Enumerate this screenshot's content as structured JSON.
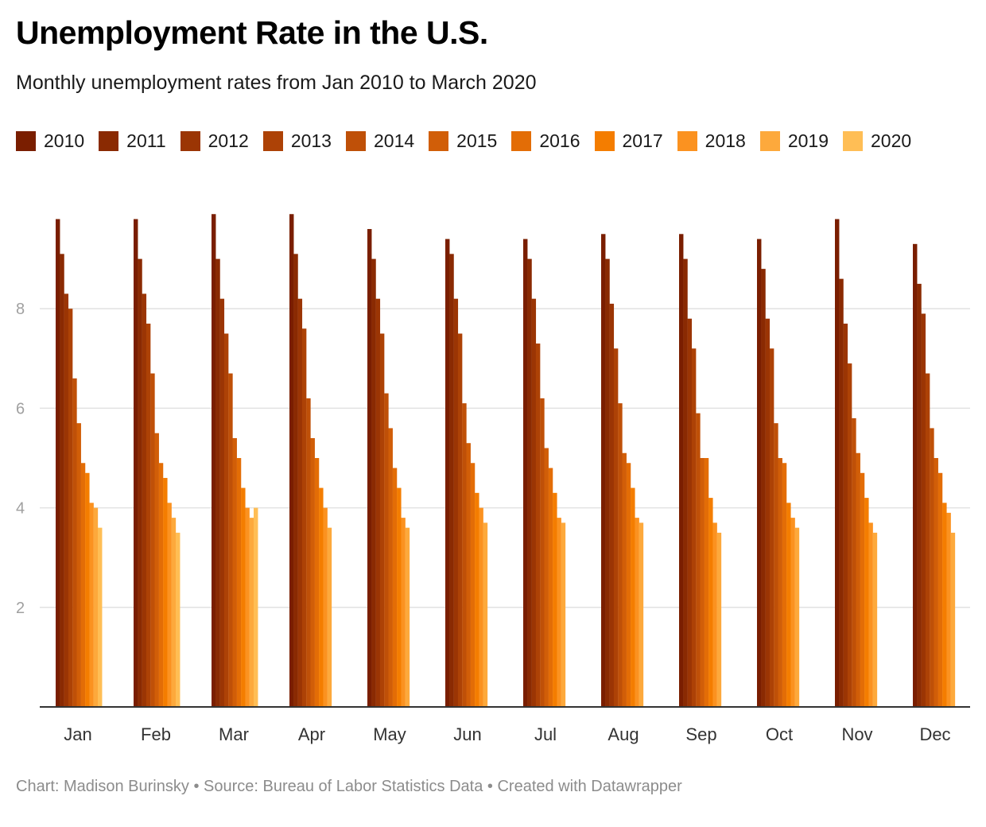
{
  "title": "Unemployment Rate in the U.S.",
  "subtitle": "Monthly unemployment rates from Jan 2010 to March 2020",
  "footer": {
    "chart_credit": "Chart: Madison Burinsky",
    "separator": "•",
    "source": "Source: Bureau of Labor Statistics Data",
    "tool": "Created with Datawrapper"
  },
  "colors": {
    "2010": "#7a1e00",
    "2011": "#8a2a02",
    "2012": "#9b3504",
    "2013": "#ad4206",
    "2014": "#bf5008",
    "2015": "#d15e08",
    "2016": "#e36d06",
    "2017": "#f47d00",
    "2018": "#fb9220",
    "2019": "#fda93c",
    "2020": "#ffbe55"
  },
  "chart_data": {
    "type": "bar",
    "categories": [
      "Jan",
      "Feb",
      "Mar",
      "Apr",
      "May",
      "Jun",
      "Jul",
      "Aug",
      "Sep",
      "Oct",
      "Nov",
      "Dec"
    ],
    "series": [
      {
        "name": "2010",
        "values": [
          9.8,
          9.8,
          9.9,
          9.9,
          9.6,
          9.4,
          9.4,
          9.5,
          9.5,
          9.4,
          9.8,
          9.3
        ]
      },
      {
        "name": "2011",
        "values": [
          9.1,
          9.0,
          9.0,
          9.1,
          9.0,
          9.1,
          9.0,
          9.0,
          9.0,
          8.8,
          8.6,
          8.5
        ]
      },
      {
        "name": "2012",
        "values": [
          8.3,
          8.3,
          8.2,
          8.2,
          8.2,
          8.2,
          8.2,
          8.1,
          7.8,
          7.8,
          7.7,
          7.9
        ]
      },
      {
        "name": "2013",
        "values": [
          8.0,
          7.7,
          7.5,
          7.6,
          7.5,
          7.5,
          7.3,
          7.2,
          7.2,
          7.2,
          6.9,
          6.7
        ]
      },
      {
        "name": "2014",
        "values": [
          6.6,
          6.7,
          6.7,
          6.2,
          6.3,
          6.1,
          6.2,
          6.1,
          5.9,
          5.7,
          5.8,
          5.6
        ]
      },
      {
        "name": "2015",
        "values": [
          5.7,
          5.5,
          5.4,
          5.4,
          5.6,
          5.3,
          5.2,
          5.1,
          5.0,
          5.0,
          5.1,
          5.0
        ]
      },
      {
        "name": "2016",
        "values": [
          4.9,
          4.9,
          5.0,
          5.0,
          4.8,
          4.9,
          4.8,
          4.9,
          5.0,
          4.9,
          4.7,
          4.7
        ]
      },
      {
        "name": "2017",
        "values": [
          4.7,
          4.6,
          4.4,
          4.4,
          4.4,
          4.3,
          4.3,
          4.4,
          4.2,
          4.1,
          4.2,
          4.1
        ]
      },
      {
        "name": "2018",
        "values": [
          4.1,
          4.1,
          4.0,
          4.0,
          3.8,
          4.0,
          3.8,
          3.8,
          3.7,
          3.8,
          3.7,
          3.9
        ]
      },
      {
        "name": "2019",
        "values": [
          4.0,
          3.8,
          3.8,
          3.6,
          3.6,
          3.7,
          3.7,
          3.7,
          3.5,
          3.6,
          3.5,
          3.5
        ]
      },
      {
        "name": "2020",
        "values": [
          3.6,
          3.5,
          4.0,
          null,
          null,
          null,
          null,
          null,
          null,
          null,
          null,
          null
        ]
      }
    ],
    "yticks": [
      2,
      4,
      6,
      8
    ],
    "ylim": [
      0,
      10
    ],
    "grid": true,
    "legend_position": "top-left"
  }
}
